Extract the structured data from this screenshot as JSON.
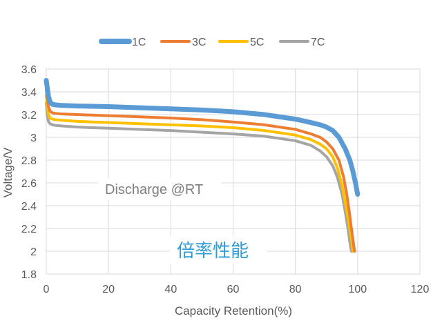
{
  "chart_data": {
    "type": "line",
    "xlabel": "Capacity Retention(%)",
    "ylabel": "Voltage/V",
    "xlim": [
      0,
      120
    ],
    "ylim": [
      1.8,
      3.6
    ],
    "x_ticks": [
      "0",
      "20",
      "40",
      "60",
      "80",
      "100",
      "120"
    ],
    "y_ticks": [
      "1.8",
      "2",
      "2.2",
      "2.4",
      "2.6",
      "2.8",
      "3",
      "3.2",
      "3.4",
      "3.6"
    ],
    "grid": true,
    "legend_position": "top",
    "annotations": [
      "Discharge @RT",
      "倍率性能"
    ],
    "series": [
      {
        "name": "1C",
        "color": "#5b9bd5",
        "width": 7,
        "x": [
          0,
          0.3,
          0.7,
          1.2,
          2,
          3,
          5,
          10,
          20,
          30,
          40,
          50,
          60,
          70,
          80,
          85,
          88,
          90,
          92,
          94,
          96,
          97.5,
          98.5,
          99.3,
          100
        ],
        "y": [
          3.5,
          3.44,
          3.36,
          3.31,
          3.29,
          3.285,
          3.28,
          3.275,
          3.27,
          3.26,
          3.25,
          3.24,
          3.225,
          3.2,
          3.16,
          3.13,
          3.11,
          3.09,
          3.06,
          3.0,
          2.9,
          2.8,
          2.7,
          2.6,
          2.5
        ]
      },
      {
        "name": "3C",
        "color": "#ed7d31",
        "width": 4,
        "x": [
          0,
          0.3,
          0.7,
          1.2,
          2,
          3,
          5,
          10,
          20,
          30,
          40,
          50,
          60,
          70,
          80,
          85,
          88,
          90,
          92,
          94,
          95.5,
          96.5,
          97.3,
          98,
          98.5,
          99
        ],
        "y": [
          3.42,
          3.35,
          3.27,
          3.23,
          3.215,
          3.21,
          3.205,
          3.2,
          3.19,
          3.18,
          3.17,
          3.155,
          3.135,
          3.11,
          3.07,
          3.03,
          3.0,
          2.96,
          2.9,
          2.8,
          2.65,
          2.5,
          2.35,
          2.2,
          2.1,
          2.0
        ]
      },
      {
        "name": "5C",
        "color": "#ffc000",
        "width": 4,
        "x": [
          0,
          0.3,
          0.7,
          1.2,
          2,
          3,
          5,
          10,
          20,
          30,
          40,
          50,
          60,
          70,
          80,
          85,
          88,
          90,
          92,
          93.5,
          95,
          96,
          97,
          97.8,
          98.5
        ],
        "y": [
          3.37,
          3.28,
          3.2,
          3.17,
          3.16,
          3.155,
          3.15,
          3.14,
          3.13,
          3.12,
          3.11,
          3.1,
          3.085,
          3.06,
          3.02,
          2.98,
          2.94,
          2.9,
          2.83,
          2.73,
          2.58,
          2.43,
          2.28,
          2.14,
          2.0
        ]
      },
      {
        "name": "7C",
        "color": "#a5a5a5",
        "width": 4,
        "x": [
          0,
          0.3,
          0.7,
          1.2,
          2,
          3,
          5,
          10,
          20,
          30,
          40,
          50,
          60,
          70,
          80,
          85,
          88,
          90,
          92,
          93.5,
          95,
          96,
          97,
          97.5,
          98
        ],
        "y": [
          3.3,
          3.2,
          3.14,
          3.12,
          3.11,
          3.105,
          3.1,
          3.09,
          3.08,
          3.07,
          3.06,
          3.045,
          3.03,
          3.01,
          2.97,
          2.93,
          2.88,
          2.83,
          2.75,
          2.65,
          2.5,
          2.35,
          2.18,
          2.08,
          2.0
        ]
      }
    ]
  }
}
